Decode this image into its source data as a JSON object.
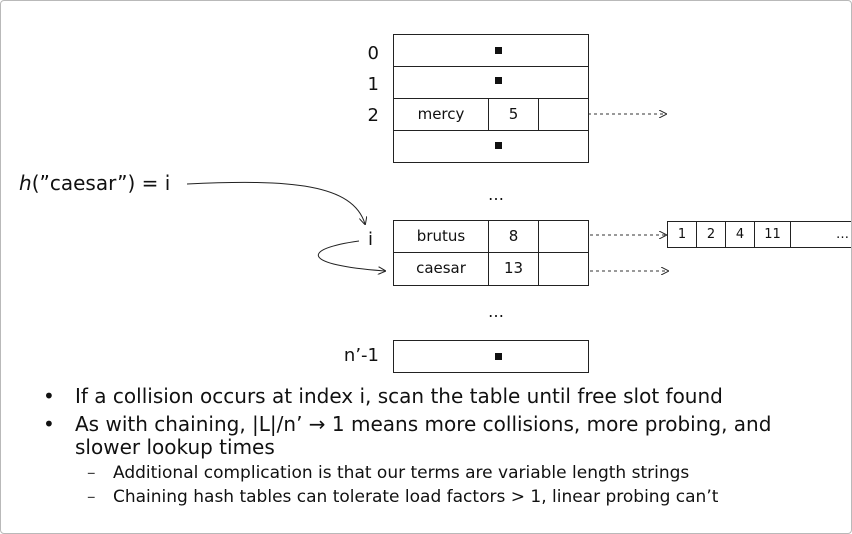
{
  "table": {
    "index_labels": [
      "0",
      "1",
      "2",
      "i",
      "n’-1"
    ],
    "ellipsis": "…",
    "rows": [
      {
        "term": "mercy",
        "freq": "5"
      },
      {
        "term": "brutus",
        "freq": "8"
      },
      {
        "term": "caesar",
        "freq": "13"
      }
    ]
  },
  "hash_expr": {
    "func": "h",
    "arg": "(”caesar”) = i"
  },
  "postings": [
    "1",
    "2",
    "4",
    "11",
    "…"
  ],
  "bullets": [
    {
      "text": "If a collision occurs at index i, scan the table until free slot found"
    },
    {
      "text": "As with chaining, |L|/n’ → 1 means more collisions, more probing, and slower lookup times",
      "subs": [
        "Additional complication is that our terms are variable length strings",
        "Chaining hash tables can tolerate load factors > 1, linear probing can’t"
      ]
    }
  ]
}
